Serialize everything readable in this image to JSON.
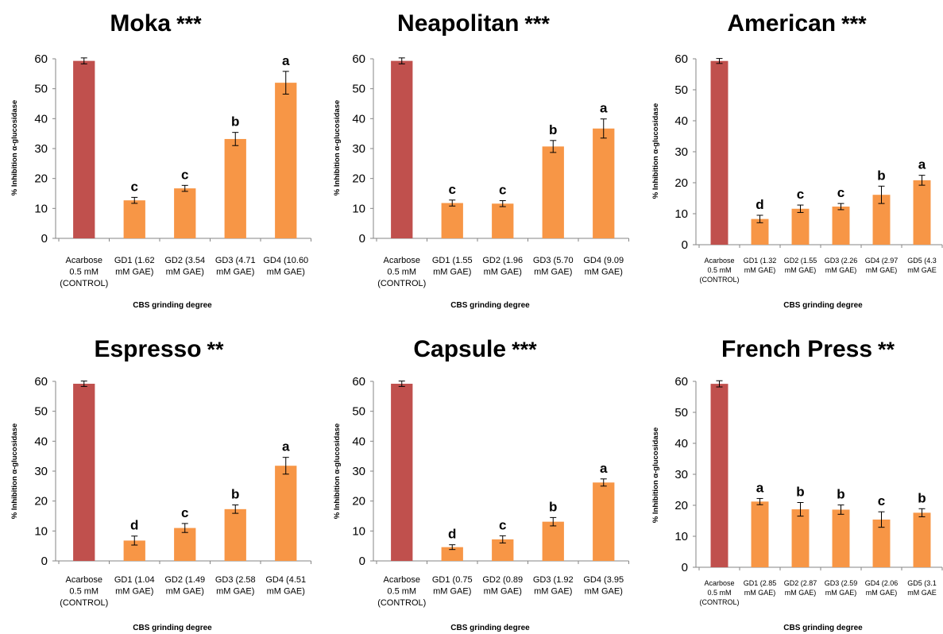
{
  "chart_data": [
    {
      "type": "bar",
      "title": "Moka",
      "significance": "***",
      "xlabel": "CBS grinding degree",
      "ylabel": "% Inhibition α-glucosidase",
      "ylim": [
        0,
        60
      ],
      "yticks": [
        "0",
        "10",
        "20",
        "30",
        "40",
        "50",
        "60"
      ],
      "categories": [
        [
          "Acarbose",
          "0.5 mM",
          "(CONTROL)"
        ],
        [
          "GD1 (1.62",
          "mM GAE)"
        ],
        [
          "GD2 (3.54",
          "mM GAE)"
        ],
        [
          "GD3 (4.71",
          "mM GAE)"
        ],
        [
          "GD4 (10.60",
          "mM GAE)"
        ]
      ],
      "values": [
        59.3,
        12.7,
        16.7,
        33.2,
        52.0
      ],
      "errors": [
        1.0,
        1.0,
        1.0,
        2.2,
        3.8
      ],
      "letters": [
        "",
        "c",
        "c",
        "b",
        "a"
      ],
      "colors": [
        "#c0504d",
        "#f79646",
        "#f79646",
        "#f79646",
        "#f79646"
      ]
    },
    {
      "type": "bar",
      "title": "Neapolitan",
      "significance": "***",
      "xlabel": "CBS grinding degree",
      "ylabel": "% Inhibition α-glucosidase",
      "ylim": [
        0,
        60
      ],
      "yticks": [
        "0",
        "10",
        "20",
        "30",
        "40",
        "50",
        "60"
      ],
      "categories": [
        [
          "Acarbose",
          "0.5 mM",
          "(CONTROL)"
        ],
        [
          "GD1 (1.55",
          "mM GAE)"
        ],
        [
          "GD2 (1.96",
          "mM GAE)"
        ],
        [
          "GD3 (5.70",
          "mM GAE)"
        ],
        [
          "GD4 (9.09",
          "mM GAE)"
        ]
      ],
      "values": [
        59.3,
        11.8,
        11.6,
        30.7,
        36.7
      ],
      "errors": [
        1.0,
        1.0,
        1.0,
        2.0,
        3.2
      ],
      "letters": [
        "",
        "c",
        "c",
        "b",
        "a"
      ],
      "colors": [
        "#c0504d",
        "#f79646",
        "#f79646",
        "#f79646",
        "#f79646"
      ]
    },
    {
      "type": "bar",
      "title": "American",
      "significance": "***",
      "xlabel": "CBS grinding degree",
      "ylabel": "% Inhibition α-glucosidase",
      "ylim": [
        0,
        60
      ],
      "yticks": [
        "0",
        "10",
        "20",
        "30",
        "40",
        "50",
        "60"
      ],
      "categories": [
        [
          "Acarbose",
          "0.5 mM",
          "(CONTROL)"
        ],
        [
          "GD1 (1.32",
          "mM GAE)"
        ],
        [
          "GD2 (1.55",
          "mM GAE)"
        ],
        [
          "GD3 (2.26",
          "mM GAE)"
        ],
        [
          "GD4 (2.97",
          "mM GAE)"
        ],
        [
          "GD5 (4.3",
          "mM GAE"
        ]
      ],
      "values": [
        59.3,
        8.3,
        11.6,
        12.3,
        16.1,
        20.8
      ],
      "errors": [
        0.8,
        1.2,
        1.2,
        1.0,
        2.8,
        1.6
      ],
      "letters": [
        "",
        "d",
        "c",
        "c",
        "b",
        "a"
      ],
      "colors": [
        "#c0504d",
        "#f79646",
        "#f79646",
        "#f79646",
        "#f79646",
        "#f79646"
      ]
    },
    {
      "type": "bar",
      "title": "Espresso",
      "significance": "**",
      "xlabel": "CBS grinding degree",
      "ylabel": "% Inhibition α-glucosidase",
      "ylim": [
        0,
        60
      ],
      "yticks": [
        "0",
        "10",
        "20",
        "30",
        "40",
        "50",
        "60"
      ],
      "categories": [
        [
          "Acarbose",
          "0.5 mM",
          "(CONTROL)"
        ],
        [
          "GD1 (1.04",
          "mM GAE)"
        ],
        [
          "GD2 (1.49",
          "mM GAE)"
        ],
        [
          "GD3 (2.58",
          "mM GAE)"
        ],
        [
          "GD4 (4.51",
          "mM GAE)"
        ]
      ],
      "values": [
        59.2,
        6.8,
        11.0,
        17.3,
        31.8
      ],
      "errors": [
        0.9,
        1.5,
        1.5,
        1.4,
        2.8
      ],
      "letters": [
        "",
        "d",
        "c",
        "b",
        "a"
      ],
      "colors": [
        "#c0504d",
        "#f79646",
        "#f79646",
        "#f79646",
        "#f79646"
      ]
    },
    {
      "type": "bar",
      "title": "Capsule",
      "significance": "***",
      "xlabel": "CBS grinding degree",
      "ylabel": "% Inhibition α-glucosidase",
      "ylim": [
        0,
        60
      ],
      "yticks": [
        "0",
        "10",
        "20",
        "30",
        "40",
        "50",
        "60"
      ],
      "categories": [
        [
          "Acarbose",
          "0.5 mM",
          "(CONTROL)"
        ],
        [
          "GD1 (0.75",
          "mM GAE)"
        ],
        [
          "GD2 (0.89",
          "mM GAE)"
        ],
        [
          "GD3 (1.92",
          "mM GAE)"
        ],
        [
          "GD4 (3.95",
          "mM GAE)"
        ]
      ],
      "values": [
        59.2,
        4.6,
        7.2,
        13.1,
        26.2
      ],
      "errors": [
        0.9,
        0.8,
        1.2,
        1.4,
        1.2
      ],
      "letters": [
        "",
        "d",
        "c",
        "b",
        "a"
      ],
      "colors": [
        "#c0504d",
        "#f79646",
        "#f79646",
        "#f79646",
        "#f79646"
      ]
    },
    {
      "type": "bar",
      "title": "French Press",
      "significance": "**",
      "xlabel": "CBS grinding degree",
      "ylabel": "% Inhibition α-glucosidase",
      "ylim": [
        0,
        60
      ],
      "yticks": [
        "0",
        "10",
        "20",
        "30",
        "40",
        "50",
        "60"
      ],
      "categories": [
        [
          "Acarbose",
          "0.5 mM",
          "(CONTROL)"
        ],
        [
          "GD1 (2.85",
          "mM GAE)"
        ],
        [
          "GD2 (2.87",
          "mM GAE)"
        ],
        [
          "GD3 (2.59",
          "mM GAE)"
        ],
        [
          "GD4 (2.06",
          "mM GAE)"
        ],
        [
          "GD5 (3.1",
          "mM GAE"
        ]
      ],
      "values": [
        59.2,
        21.2,
        18.7,
        18.6,
        15.4,
        17.6
      ],
      "errors": [
        1.0,
        1.0,
        2.2,
        1.5,
        2.5,
        1.3
      ],
      "letters": [
        "",
        "a",
        "b",
        "b",
        "c",
        "b"
      ],
      "colors": [
        "#c0504d",
        "#f79646",
        "#f79646",
        "#f79646",
        "#f79646",
        "#f79646"
      ]
    }
  ]
}
